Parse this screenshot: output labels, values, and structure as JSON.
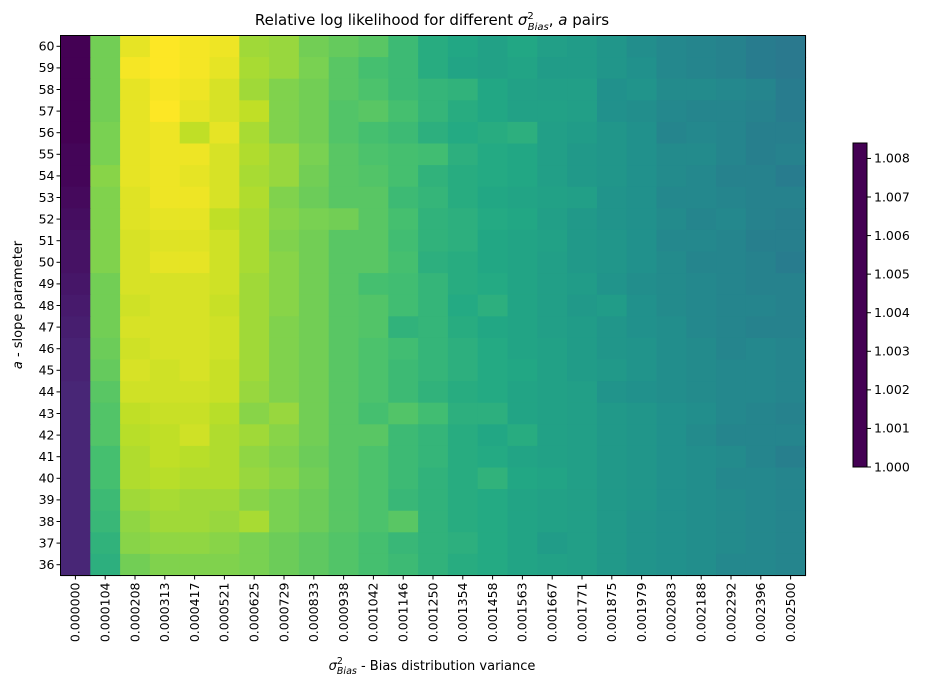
{
  "chart_data": {
    "type": "heatmap",
    "title": {
      "prefix": "Relative log likelihood for different ",
      "suffix": " pairs"
    },
    "xlabel": {
      "suffix": " - Bias distribution variance"
    },
    "ylabel": {
      "suffix": " - slope parameter"
    },
    "x_categories": [
      "0.000000",
      "0.000104",
      "0.000208",
      "0.000313",
      "0.000417",
      "0.000521",
      "0.000625",
      "0.000729",
      "0.000833",
      "0.000938",
      "0.001042",
      "0.001146",
      "0.001250",
      "0.001354",
      "0.001458",
      "0.001563",
      "0.001667",
      "0.001771",
      "0.001875",
      "0.001979",
      "0.002083",
      "0.002188",
      "0.002292",
      "0.002396",
      "0.002500"
    ],
    "y_categories": [
      "60",
      "59",
      "58",
      "57",
      "56",
      "55",
      "54",
      "53",
      "52",
      "51",
      "50",
      "49",
      "48",
      "47",
      "46",
      "45",
      "44",
      "43",
      "42",
      "41",
      "40",
      "39",
      "38",
      "37",
      "36"
    ],
    "value_range": [
      1.0,
      1.0084
    ],
    "colormap": "viridis_r",
    "colorbar_ticks": [
      "1.000",
      "1.001",
      "1.002",
      "1.003",
      "1.004",
      "1.005",
      "1.006",
      "1.007",
      "1.008"
    ],
    "colorbar_tick_values": [
      1.0,
      1.001,
      1.002,
      1.003,
      1.004,
      1.005,
      1.006,
      1.007,
      1.008
    ],
    "values": [
      [
        1.0084,
        1.0018,
        1.0003,
        1.0,
        1.0001,
        1.0002,
        1.0012,
        1.0013,
        1.0018,
        1.002,
        1.0022,
        1.0027,
        1.0032,
        1.0034,
        1.0036,
        1.0034,
        1.0037,
        1.0038,
        1.004,
        1.0043,
        1.0045,
        1.0046,
        1.0047,
        1.0049,
        1.005
      ],
      [
        1.0084,
        1.0018,
        1.0001,
        1.0,
        1.0001,
        1.0003,
        1.0011,
        1.0013,
        1.0017,
        1.0022,
        1.0025,
        1.0027,
        1.0032,
        1.0035,
        1.0036,
        1.0035,
        1.0038,
        1.0038,
        1.004,
        1.0042,
        1.0045,
        1.0046,
        1.0047,
        1.0049,
        1.005
      ],
      [
        1.0084,
        1.0018,
        1.0003,
        1.0001,
        1.0002,
        1.0005,
        1.0012,
        1.0016,
        1.0018,
        1.0022,
        1.0024,
        1.0027,
        1.0029,
        1.003,
        1.0034,
        1.0036,
        1.0037,
        1.0037,
        1.0042,
        1.0041,
        1.0044,
        1.0044,
        1.0045,
        1.0046,
        1.0049
      ],
      [
        1.0084,
        1.0018,
        1.0003,
        1.0,
        1.0003,
        1.0005,
        1.0008,
        1.0016,
        1.0018,
        1.0023,
        1.0022,
        1.0025,
        1.0029,
        1.0032,
        1.0034,
        1.0036,
        1.0036,
        1.0037,
        1.0042,
        1.0043,
        1.0045,
        1.0046,
        1.0046,
        1.0047,
        1.0049
      ],
      [
        1.0084,
        1.0017,
        1.0003,
        1.0002,
        1.0008,
        1.0003,
        1.0011,
        1.0016,
        1.0018,
        1.0023,
        1.0025,
        1.0027,
        1.0031,
        1.0033,
        1.0032,
        1.0031,
        1.0037,
        1.0038,
        1.004,
        1.0042,
        1.0046,
        1.0045,
        1.0046,
        1.0048,
        1.0048
      ],
      [
        1.0083,
        1.0017,
        1.0003,
        1.0002,
        1.0002,
        1.0005,
        1.001,
        1.0013,
        1.0017,
        1.0022,
        1.0024,
        1.0025,
        1.0026,
        1.0031,
        1.0033,
        1.0034,
        1.0037,
        1.0039,
        1.004,
        1.0042,
        1.0044,
        1.0044,
        1.0046,
        1.0048,
        1.0047
      ],
      [
        1.0083,
        1.0015,
        1.0003,
        1.0002,
        1.0003,
        1.0005,
        1.0011,
        1.0013,
        1.0018,
        1.0022,
        1.0023,
        1.0025,
        1.003,
        1.0032,
        1.0033,
        1.0034,
        1.0037,
        1.0039,
        1.004,
        1.0042,
        1.0044,
        1.0045,
        1.0047,
        1.0047,
        1.0049
      ],
      [
        1.0082,
        1.0016,
        1.0004,
        1.0002,
        1.0002,
        1.0005,
        1.001,
        1.0016,
        1.0019,
        1.0022,
        1.0022,
        1.0027,
        1.0029,
        1.0032,
        1.0034,
        1.0035,
        1.0036,
        1.0037,
        1.0041,
        1.0042,
        1.0045,
        1.0045,
        1.0046,
        1.0047,
        1.0047
      ],
      [
        1.0081,
        1.0016,
        1.0004,
        1.0003,
        1.0003,
        1.0008,
        1.0011,
        1.0015,
        1.0017,
        1.0018,
        1.0022,
        1.0025,
        1.003,
        1.0031,
        1.0033,
        1.0034,
        1.0037,
        1.0039,
        1.0041,
        1.0042,
        1.0044,
        1.0046,
        1.0045,
        1.0047,
        1.0048
      ],
      [
        1.008,
        1.0016,
        1.0005,
        1.0004,
        1.0004,
        1.0006,
        1.0011,
        1.0016,
        1.0018,
        1.0022,
        1.0022,
        1.0026,
        1.003,
        1.0031,
        1.0034,
        1.0035,
        1.0036,
        1.0039,
        1.004,
        1.0042,
        1.0045,
        1.0045,
        1.0046,
        1.0048,
        1.0048
      ],
      [
        1.008,
        1.0016,
        1.0005,
        1.0003,
        1.0003,
        1.0006,
        1.0011,
        1.0015,
        1.0018,
        1.0022,
        1.0022,
        1.0025,
        1.0031,
        1.0032,
        1.0034,
        1.0035,
        1.0037,
        1.0039,
        1.004,
        1.0042,
        1.0044,
        1.0046,
        1.0046,
        1.0047,
        1.0049
      ],
      [
        1.0079,
        1.0018,
        1.0005,
        1.0005,
        1.0005,
        1.0006,
        1.0012,
        1.0015,
        1.0018,
        1.0022,
        1.0025,
        1.0026,
        1.0029,
        1.0032,
        1.0033,
        1.0035,
        1.0037,
        1.0038,
        1.0041,
        1.0043,
        1.0044,
        1.0045,
        1.0046,
        1.0047,
        1.0047
      ],
      [
        1.0078,
        1.0018,
        1.0006,
        1.0005,
        1.0005,
        1.0007,
        1.0012,
        1.0015,
        1.0018,
        1.0022,
        1.0023,
        1.0026,
        1.0029,
        1.0033,
        1.0031,
        1.0035,
        1.0037,
        1.0039,
        1.0038,
        1.0042,
        1.0044,
        1.0045,
        1.0046,
        1.0046,
        1.0047
      ],
      [
        1.0077,
        1.0018,
        1.0005,
        1.0005,
        1.0005,
        1.0006,
        1.0012,
        1.0016,
        1.0018,
        1.0022,
        1.0023,
        1.003,
        1.0029,
        1.0032,
        1.0034,
        1.0035,
        1.0037,
        1.0038,
        1.004,
        1.0042,
        1.0043,
        1.0045,
        1.0046,
        1.0047,
        1.0047
      ],
      [
        1.0076,
        1.0019,
        1.0006,
        1.0005,
        1.0005,
        1.0006,
        1.0012,
        1.0016,
        1.0018,
        1.0022,
        1.0024,
        1.0026,
        1.0029,
        1.0031,
        1.0033,
        1.0035,
        1.0036,
        1.0038,
        1.004,
        1.0041,
        1.0043,
        1.0044,
        1.0046,
        1.0045,
        1.0046
      ],
      [
        1.0076,
        1.002,
        1.0005,
        1.0006,
        1.0005,
        1.0007,
        1.0012,
        1.0016,
        1.0018,
        1.0022,
        1.0024,
        1.0027,
        1.0029,
        1.0031,
        1.0033,
        1.0034,
        1.0036,
        1.0038,
        1.0039,
        1.0041,
        1.0043,
        1.0044,
        1.0045,
        1.0045,
        1.0046
      ],
      [
        1.0075,
        1.0022,
        1.0006,
        1.0006,
        1.0006,
        1.0007,
        1.0013,
        1.0016,
        1.0018,
        1.0022,
        1.0024,
        1.0027,
        1.003,
        1.0032,
        1.0033,
        1.0035,
        1.0036,
        1.0037,
        1.0041,
        1.0042,
        1.0043,
        1.0044,
        1.0045,
        1.0045,
        1.0046
      ],
      [
        1.0075,
        1.0023,
        1.0008,
        1.0007,
        1.0007,
        1.0009,
        1.0015,
        1.0013,
        1.0018,
        1.0022,
        1.0025,
        1.0023,
        1.0026,
        1.0031,
        1.0031,
        1.0035,
        1.0036,
        1.0037,
        1.0039,
        1.004,
        1.0042,
        1.0043,
        1.0045,
        1.0046,
        1.0047
      ],
      [
        1.0075,
        1.0023,
        1.0009,
        1.0008,
        1.0006,
        1.001,
        1.0012,
        1.0015,
        1.0018,
        1.0022,
        1.0022,
        1.0027,
        1.0029,
        1.0032,
        1.0034,
        1.0032,
        1.0036,
        1.0037,
        1.0039,
        1.004,
        1.0042,
        1.0044,
        1.0046,
        1.0046,
        1.0046
      ],
      [
        1.0075,
        1.0025,
        1.001,
        1.0008,
        1.0009,
        1.001,
        1.0014,
        1.0016,
        1.0019,
        1.0022,
        1.0024,
        1.0027,
        1.0029,
        1.0032,
        1.0033,
        1.0035,
        1.0036,
        1.0037,
        1.0039,
        1.004,
        1.0042,
        1.0043,
        1.0044,
        1.0046,
        1.0048
      ],
      [
        1.0075,
        1.0025,
        1.001,
        1.0009,
        1.001,
        1.001,
        1.0013,
        1.0015,
        1.0018,
        1.0022,
        1.0024,
        1.0027,
        1.003,
        1.0032,
        1.003,
        1.0034,
        1.0035,
        1.0037,
        1.0039,
        1.004,
        1.0042,
        1.0043,
        1.0045,
        1.0045,
        1.0046
      ],
      [
        1.0075,
        1.0027,
        1.0012,
        1.0011,
        1.0012,
        1.0012,
        1.0015,
        1.0017,
        1.0019,
        1.0022,
        1.0024,
        1.0028,
        1.003,
        1.0032,
        1.0033,
        1.0035,
        1.0036,
        1.0037,
        1.0039,
        1.004,
        1.0042,
        1.0043,
        1.0044,
        1.0045,
        1.0046
      ],
      [
        1.0075,
        1.0028,
        1.0014,
        1.0012,
        1.0012,
        1.0013,
        1.0011,
        1.0017,
        1.0019,
        1.0022,
        1.0024,
        1.0022,
        1.003,
        1.0032,
        1.0033,
        1.0035,
        1.0036,
        1.0037,
        1.0039,
        1.0041,
        1.0042,
        1.0043,
        1.0044,
        1.0045,
        1.0046
      ],
      [
        1.0075,
        1.003,
        1.0015,
        1.0014,
        1.0014,
        1.0015,
        1.0017,
        1.0019,
        1.0021,
        1.0023,
        1.0025,
        1.0028,
        1.003,
        1.0031,
        1.0033,
        1.0035,
        1.0038,
        1.0037,
        1.0039,
        1.0041,
        1.0042,
        1.0043,
        1.0044,
        1.0045,
        1.0046
      ],
      [
        1.0075,
        1.0031,
        1.0018,
        1.0016,
        1.0016,
        1.0016,
        1.0017,
        1.0019,
        1.0021,
        1.0023,
        1.0025,
        1.0027,
        1.003,
        1.0032,
        1.0033,
        1.0035,
        1.0036,
        1.0037,
        1.0039,
        1.0041,
        1.0042,
        1.0043,
        1.0045,
        1.0045,
        1.0046
      ]
    ]
  }
}
